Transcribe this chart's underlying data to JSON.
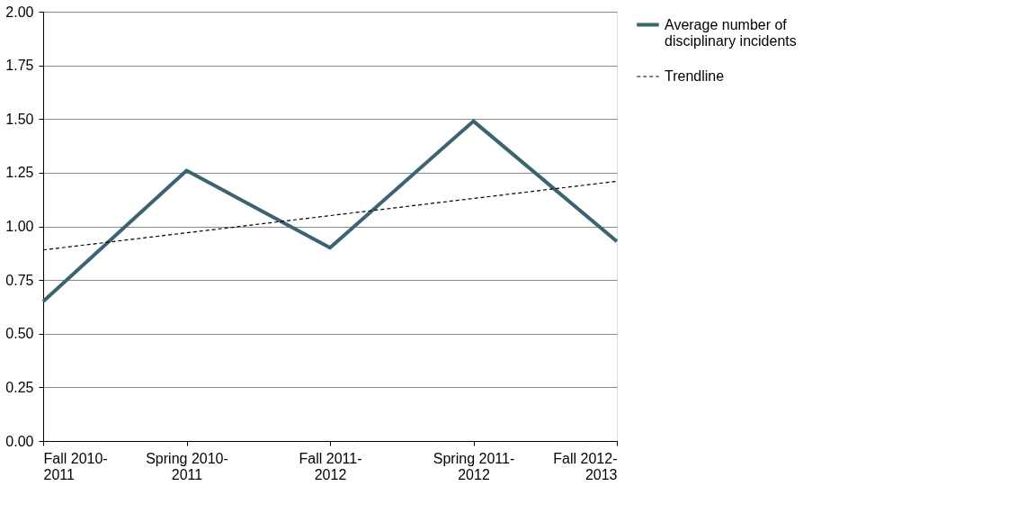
{
  "chart_data": {
    "type": "line",
    "categories": [
      "Fall 2010-2011",
      "Spring 2010-2011",
      "Fall 2011-2012",
      "Spring 2011-2012",
      "Fall 2012-2013"
    ],
    "series": [
      {
        "name": "Average number of disciplinary incidents",
        "color": "#3b6470",
        "values": [
          0.65,
          1.26,
          0.9,
          1.49,
          0.93
        ],
        "line_style": "solid"
      },
      {
        "name": "Trendline",
        "color": "#000000",
        "values": [
          0.89,
          0.97,
          1.05,
          1.13,
          1.21
        ],
        "line_style": "dashed"
      }
    ],
    "ylim": [
      0,
      2
    ],
    "yticks": [
      {
        "value": 0,
        "label": "0.00"
      },
      {
        "value": 0.25,
        "label": "0.25"
      },
      {
        "value": 0.5,
        "label": "0.50"
      },
      {
        "value": 0.75,
        "label": "0.75"
      },
      {
        "value": 1,
        "label": "1.00"
      },
      {
        "value": 1.25,
        "label": "1.25"
      },
      {
        "value": 1.5,
        "label": "1.50"
      },
      {
        "value": 1.75,
        "label": "1.75"
      },
      {
        "value": 2,
        "label": "2.00"
      }
    ],
    "grid": "y",
    "legend": "right",
    "marker": "none"
  }
}
